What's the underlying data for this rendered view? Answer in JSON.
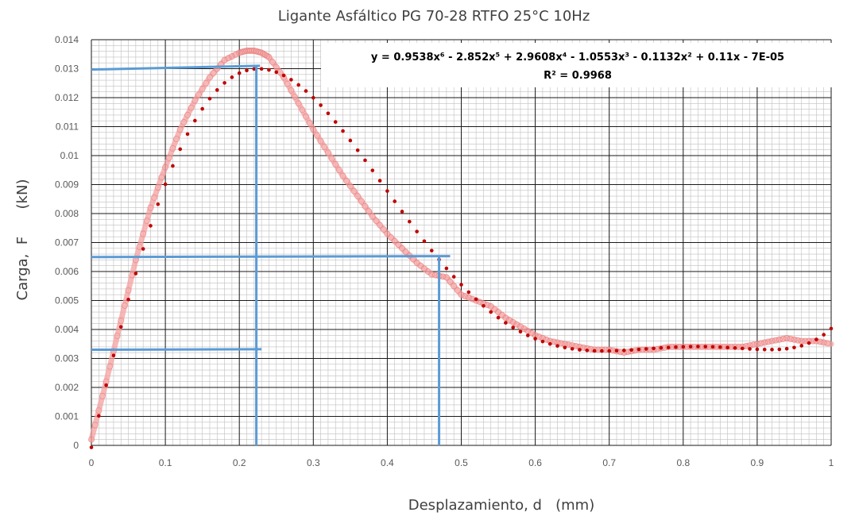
{
  "chart_data": {
    "type": "scatter",
    "title": "Ligante Asfáltico PG 70-28 RTFO 25°C 10Hz",
    "xlabel": "Desplazamiento, d   (mm)",
    "ylabel": "Carga,  F      (kN)",
    "xlim": [
      0,
      1
    ],
    "ylim": [
      0,
      0.014
    ],
    "x_ticks": [
      "0",
      "0.1",
      "0.2",
      "0.3",
      "0.4",
      "0.5",
      "0.6",
      "0.7",
      "0.8",
      "0.9",
      "1"
    ],
    "y_ticks": [
      "0",
      "0.001",
      "0.002",
      "0.003",
      "0.004",
      "0.005",
      "0.006",
      "0.007",
      "0.008",
      "0.009",
      "0.01",
      "0.011",
      "0.012",
      "0.013",
      "0.014"
    ],
    "grid": true,
    "series": [
      {
        "kind": "measured",
        "color": "#f4a0a0",
        "x": [
          0,
          0.02,
          0.04,
          0.06,
          0.08,
          0.1,
          0.12,
          0.14,
          0.16,
          0.18,
          0.2,
          0.21,
          0.22,
          0.23,
          0.24,
          0.26,
          0.28,
          0.3,
          0.32,
          0.34,
          0.36,
          0.38,
          0.4,
          0.42,
          0.44,
          0.46,
          0.48,
          0.5,
          0.52,
          0.54,
          0.56,
          0.58,
          0.6,
          0.62,
          0.64,
          0.66,
          0.68,
          0.7,
          0.72,
          0.74,
          0.76,
          0.78,
          0.8,
          0.82,
          0.84,
          0.86,
          0.88,
          0.9,
          0.92,
          0.94,
          0.96,
          0.98,
          1.0
        ],
        "y": [
          0.0002,
          0.0022,
          0.0043,
          0.0064,
          0.0082,
          0.0096,
          0.0109,
          0.0119,
          0.0127,
          0.0133,
          0.01355,
          0.01362,
          0.01362,
          0.01355,
          0.0134,
          0.0127,
          0.0118,
          0.0109,
          0.0101,
          0.0093,
          0.0086,
          0.0079,
          0.0073,
          0.0068,
          0.0063,
          0.0059,
          0.0058,
          0.0052,
          0.005,
          0.0048,
          0.0044,
          0.0041,
          0.0038,
          0.0036,
          0.0035,
          0.0034,
          0.0033,
          0.0033,
          0.0032,
          0.0033,
          0.0033,
          0.0034,
          0.0034,
          0.0034,
          0.0034,
          0.0034,
          0.0034,
          0.0035,
          0.0036,
          0.0037,
          0.0036,
          0.0036,
          0.0035
        ]
      },
      {
        "kind": "polynomial-trendline",
        "color": "#c00000",
        "coefficients": [
          0.9538,
          -2.852,
          2.9608,
          -1.0553,
          -0.1132,
          0.11,
          -7e-05
        ],
        "x_range": [
          0,
          1
        ],
        "equation": "y = 0.9538x⁶ - 2.852x⁵ + 2.9608x⁴ - 1.0553x³ - 0.1132x² + 0.11x - 7E-05",
        "r2": "R² = 0.9968"
      }
    ],
    "reference_lines": {
      "color": "#5b9bd5",
      "horizontal": [
        {
          "y_start": 0.01297,
          "y_end": 0.0131,
          "x_start": 0.0,
          "x_end": 0.228
        },
        {
          "y_start": 0.0065,
          "y_end": 0.00653,
          "x_start": 0.0,
          "x_end": 0.485
        },
        {
          "y_start": 0.0033,
          "y_end": 0.00332,
          "x_start": 0.0,
          "x_end": 0.23
        }
      ],
      "vertical": [
        {
          "x": 0.223,
          "y_start": 0.0,
          "y_end": 0.0131
        },
        {
          "x": 0.47,
          "y_start": 0.0,
          "y_end": 0.0065
        }
      ]
    }
  }
}
